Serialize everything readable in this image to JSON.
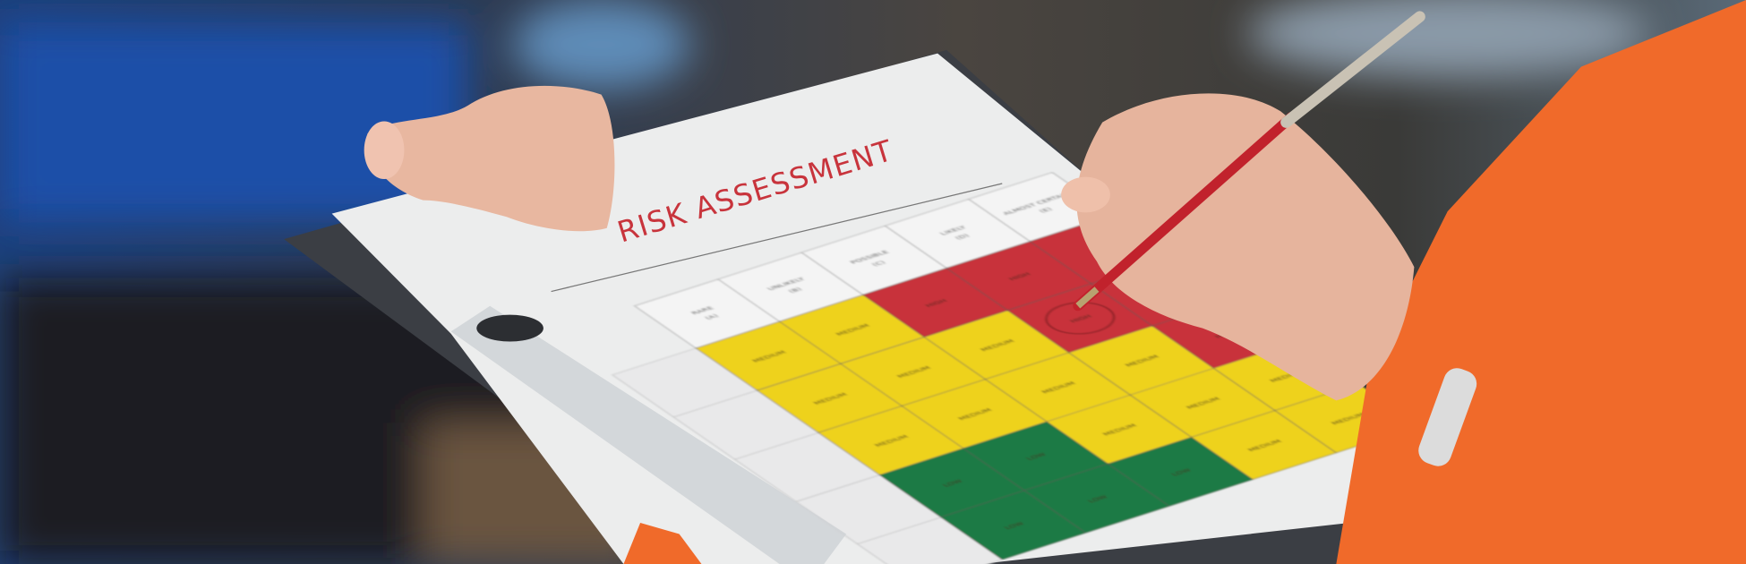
{
  "document": {
    "title": "RISK ASSESSMENT",
    "column_headers": [
      {
        "label": "RARE",
        "code": "(A)"
      },
      {
        "label": "UNLIKELY",
        "code": "(B)"
      },
      {
        "label": "POSSIBLE",
        "code": "(C)"
      },
      {
        "label": "LIKELY",
        "code": "(D)"
      },
      {
        "label": "ALMOST CERTAIN",
        "code": "(E)"
      }
    ],
    "matrix": [
      [
        "MEDIUM",
        "MEDIUM",
        "HIGH",
        "HIGH",
        "HIGH"
      ],
      [
        "MEDIUM",
        "MEDIUM",
        "MEDIUM",
        "HIGH",
        "HIGH"
      ],
      [
        "MEDIUM",
        "MEDIUM",
        "MEDIUM",
        "MEDIUM",
        "HIGH"
      ],
      [
        "LOW",
        "LOW",
        "MEDIUM",
        "MEDIUM",
        "MEDIUM"
      ],
      [
        "LOW",
        "LOW",
        "LOW",
        "MEDIUM",
        "MEDIUM"
      ]
    ],
    "circled_cell": {
      "row": 1,
      "col": 3
    }
  },
  "colors": {
    "HIGH": "#c8313a",
    "MEDIUM": "#eed21f",
    "LOW": "#1f7a45",
    "jacket": "#f06a2a",
    "title": "#c8343c"
  }
}
